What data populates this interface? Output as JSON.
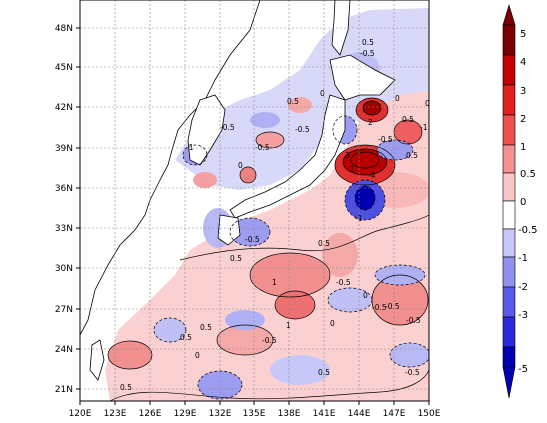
{
  "map": {
    "x_ticks": [
      "120E",
      "123E",
      "126E",
      "129E",
      "132E",
      "135E",
      "138E",
      "141E",
      "144E",
      "147E",
      "150E"
    ],
    "y_ticks": [
      "21N",
      "24N",
      "27N",
      "30N",
      "33N",
      "36N",
      "39N",
      "42N",
      "45N",
      "48N"
    ],
    "lon_range": [
      120,
      150
    ],
    "lat_range": [
      19.5,
      50
    ],
    "contour_labels": [
      "0.5",
      "0.5",
      "-0.5",
      "0",
      "0",
      "0",
      "-0.5",
      "-0.5",
      "-0.5",
      "0.5",
      "-1",
      "-0.5",
      "0",
      "-1",
      "0.5",
      "1",
      "2",
      "-4",
      "3",
      "-1",
      "0.5",
      "-0.5",
      "0.5",
      "1",
      "1",
      "-0.5",
      "-0.5",
      "0",
      "0",
      "-0.5",
      "0.5",
      "-0.5",
      "0",
      "-0.5",
      "0.5",
      "0.5",
      "0.5",
      "-0.5"
    ]
  },
  "colorbar": {
    "labels": [
      "5",
      "4",
      "3",
      "2",
      "1",
      "0.5",
      "0",
      "-0.5",
      "-1",
      "-2",
      "-3",
      "-5"
    ],
    "colors": [
      "#7a0000",
      "#c40000",
      "#e02020",
      "#ee5050",
      "#f59090",
      "#fbc8c8",
      "#ffffff",
      "#c8c8f8",
      "#9090f0",
      "#5a5ae8",
      "#2a2ad8",
      "#0000b0"
    ]
  }
}
